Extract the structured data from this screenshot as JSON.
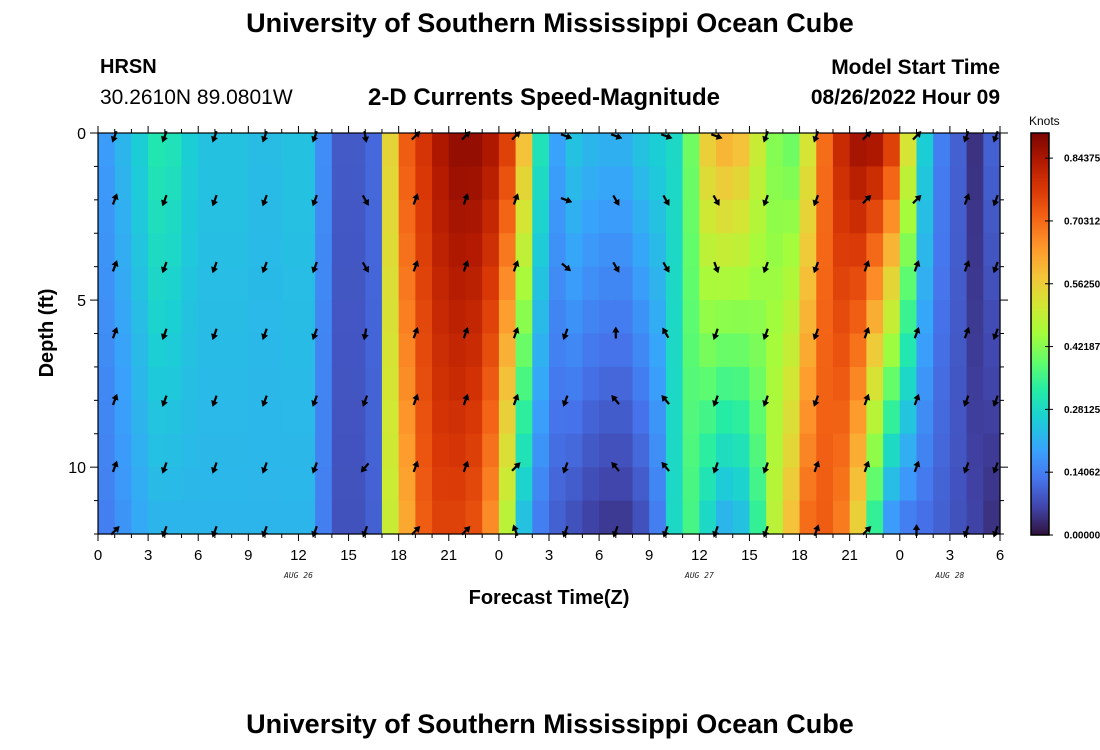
{
  "header": {
    "title": "University of Southern Mississippi Ocean Cube",
    "station": "HRSN",
    "coordinates": "30.2610N  89.0801W",
    "chart_title": "2-D Currents Speed-Magnitude",
    "model_start_label": "Model Start Time",
    "model_start_value": "08/26/2022 Hour 09"
  },
  "footer": {
    "title": "University of Southern Mississippi Ocean Cube"
  },
  "colors": {
    "arrow": "#000000",
    "frame": "#000000"
  },
  "chart_data": {
    "type": "heatmap",
    "title": "2-D Currents Speed-Magnitude",
    "xlabel": "Forecast Time(Z)",
    "ylabel": "Depth (ft)",
    "x_range_hours": [
      0,
      54
    ],
    "y_range_ft": [
      0,
      12
    ],
    "x_tick_labels": [
      "0",
      "3",
      "6",
      "9",
      "12",
      "15",
      "18",
      "21",
      "0",
      "3",
      "6",
      "9",
      "12",
      "15",
      "18",
      "21",
      "0",
      "3",
      "6"
    ],
    "y_ticks": [
      0,
      5,
      10
    ],
    "y_tick_labels": [
      "0",
      "5",
      "10"
    ],
    "day_labels": [
      {
        "hour": 12,
        "label": "AUG 26"
      },
      {
        "hour": 36,
        "label": "AUG 27"
      },
      {
        "hour": 51,
        "label": "AUG 28"
      }
    ],
    "colorbar": {
      "label": "Knots",
      "min": 0.0,
      "max": 0.9,
      "tick_values": [
        0.0,
        0.140625,
        0.28125,
        0.421875,
        0.5625,
        0.703125,
        0.84375
      ],
      "tick_labels": [
        "0.00000",
        "0.14062",
        "0.28125",
        "0.42187",
        "0.56250",
        "0.70312",
        "0.84375"
      ]
    },
    "column_hours": [
      0,
      1,
      2,
      3,
      4,
      5,
      6,
      7,
      8,
      9,
      10,
      11,
      12,
      13,
      14,
      15,
      16,
      17,
      18,
      19,
      20,
      21,
      22,
      23,
      24,
      25,
      26,
      27,
      28,
      29,
      30,
      31,
      32,
      33,
      34,
      35,
      36,
      37,
      38,
      39,
      40,
      41,
      42,
      43,
      44,
      45,
      46,
      47,
      48,
      49,
      50,
      51,
      52,
      53
    ],
    "surface_speed": [
      0.18,
      0.22,
      0.26,
      0.31,
      0.3,
      0.26,
      0.24,
      0.24,
      0.24,
      0.23,
      0.23,
      0.24,
      0.24,
      0.16,
      0.09,
      0.09,
      0.11,
      0.55,
      0.72,
      0.78,
      0.84,
      0.87,
      0.87,
      0.84,
      0.76,
      0.58,
      0.3,
      0.19,
      0.24,
      0.22,
      0.21,
      0.21,
      0.24,
      0.26,
      0.28,
      0.4,
      0.56,
      0.6,
      0.58,
      0.5,
      0.42,
      0.4,
      0.52,
      0.7,
      0.8,
      0.85,
      0.84,
      0.76,
      0.52,
      0.26,
      0.14,
      0.1,
      0.04,
      0.1
    ],
    "bottom_speed": [
      0.14,
      0.17,
      0.2,
      0.22,
      0.22,
      0.22,
      0.22,
      0.22,
      0.22,
      0.22,
      0.22,
      0.22,
      0.22,
      0.14,
      0.08,
      0.08,
      0.1,
      0.5,
      0.62,
      0.72,
      0.76,
      0.76,
      0.74,
      0.66,
      0.48,
      0.24,
      0.14,
      0.1,
      0.08,
      0.06,
      0.05,
      0.05,
      0.08,
      0.14,
      0.28,
      0.36,
      0.28,
      0.22,
      0.24,
      0.34,
      0.48,
      0.58,
      0.7,
      0.72,
      0.68,
      0.56,
      0.34,
      0.18,
      0.14,
      0.12,
      0.1,
      0.08,
      0.06,
      0.04
    ],
    "vector_field": {
      "hours": [
        1,
        4,
        7,
        10,
        13,
        16,
        19,
        22,
        25,
        28,
        31,
        34,
        37,
        40,
        43,
        46,
        49,
        52,
        54
      ],
      "depths_ft": [
        0,
        2,
        4,
        6,
        8,
        10,
        12
      ],
      "direction_deg": [
        [
          200,
          200,
          200,
          200,
          200,
          170,
          45,
          45,
          45,
          110,
          110,
          110,
          110,
          200,
          200,
          45,
          45,
          200,
          200
        ],
        [
          20,
          200,
          200,
          200,
          200,
          150,
          20,
          20,
          20,
          110,
          150,
          150,
          150,
          200,
          200,
          45,
          45,
          20,
          200
        ],
        [
          20,
          200,
          200,
          200,
          200,
          150,
          20,
          20,
          20,
          130,
          150,
          150,
          160,
          200,
          200,
          20,
          20,
          20,
          200
        ],
        [
          20,
          200,
          200,
          200,
          200,
          190,
          20,
          20,
          20,
          200,
          0,
          330,
          200,
          200,
          200,
          20,
          20,
          20,
          200
        ],
        [
          20,
          200,
          200,
          200,
          200,
          200,
          20,
          20,
          20,
          200,
          320,
          320,
          200,
          200,
          200,
          20,
          20,
          200,
          200
        ],
        [
          20,
          200,
          200,
          200,
          200,
          220,
          20,
          20,
          45,
          200,
          320,
          320,
          200,
          200,
          20,
          20,
          20,
          200,
          200
        ],
        [
          45,
          200,
          200,
          200,
          200,
          200,
          45,
          45,
          340,
          200,
          200,
          200,
          200,
          200,
          20,
          45,
          0,
          200,
          200
        ]
      ]
    }
  }
}
